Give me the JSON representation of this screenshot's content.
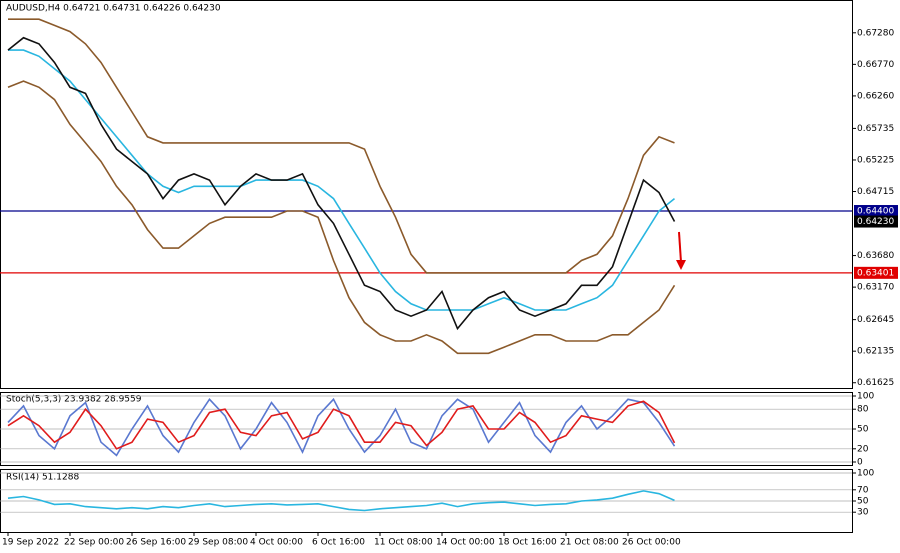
{
  "chart_data": [
    {
      "type": "line",
      "title": "AUDUSD,H4  0.64721 0.64731 0.64226 0.64230",
      "categories": [
        "19 Sep 2022",
        null,
        null,
        null,
        "22 Sep 00:00",
        null,
        null,
        null,
        "26 Sep 16:00",
        null,
        null,
        null,
        "29 Sep 08:00",
        null,
        null,
        null,
        "4 Oct 00:00",
        null,
        null,
        null,
        "6 Oct 16:00",
        null,
        null,
        null,
        "11 Oct 08:00",
        null,
        null,
        null,
        "14 Oct 00:00",
        null,
        null,
        null,
        "18 Oct 16:00",
        null,
        null,
        null,
        "21 Oct 08:00",
        null,
        null,
        null,
        "26 Oct 00:00",
        null,
        null,
        null
      ],
      "series": [
        {
          "color": "#8b5a2b",
          "values": [
            0.675,
            0.675,
            0.675,
            0.674,
            0.673,
            0.671,
            0.668,
            0.664,
            0.66,
            0.656,
            0.655,
            0.655,
            0.655,
            0.655,
            0.655,
            0.655,
            0.655,
            0.655,
            0.655,
            0.655,
            0.655,
            0.655,
            0.655,
            0.654,
            0.648,
            0.643,
            0.637,
            0.634,
            0.634,
            0.634,
            0.634,
            0.634,
            0.634,
            0.634,
            0.634,
            0.634,
            0.634,
            0.636,
            0.637,
            0.64,
            0.646,
            0.653,
            0.656,
            0.655
          ]
        },
        {
          "color": "#8b5a2b",
          "values": [
            0.664,
            0.665,
            0.664,
            0.662,
            0.658,
            0.655,
            0.652,
            0.648,
            0.645,
            0.641,
            0.638,
            0.638,
            0.64,
            0.642,
            0.643,
            0.643,
            0.643,
            0.643,
            0.644,
            0.644,
            0.643,
            0.636,
            0.63,
            0.626,
            0.624,
            0.623,
            0.623,
            0.624,
            0.623,
            0.621,
            0.621,
            0.621,
            0.622,
            0.623,
            0.624,
            0.624,
            0.623,
            0.623,
            0.623,
            0.624,
            0.624,
            0.626,
            0.628,
            0.632
          ]
        },
        {
          "color": "#29b6e0",
          "values": [
            0.67,
            0.67,
            0.669,
            0.667,
            0.665,
            0.662,
            0.659,
            0.656,
            0.653,
            0.65,
            0.648,
            0.647,
            0.648,
            0.648,
            0.648,
            0.648,
            0.649,
            0.649,
            0.649,
            0.649,
            0.648,
            0.646,
            0.642,
            0.638,
            0.634,
            0.631,
            0.629,
            0.628,
            0.628,
            0.628,
            0.628,
            0.629,
            0.63,
            0.629,
            0.628,
            0.628,
            0.628,
            0.629,
            0.63,
            0.632,
            0.636,
            0.64,
            0.644,
            0.646
          ]
        },
        {
          "color": "#111111",
          "values": [
            0.67,
            0.672,
            0.671,
            0.668,
            0.664,
            0.663,
            0.658,
            0.654,
            0.652,
            0.65,
            0.646,
            0.649,
            0.65,
            0.649,
            0.645,
            0.648,
            0.65,
            0.649,
            0.649,
            0.65,
            0.645,
            0.642,
            0.637,
            0.632,
            0.631,
            0.628,
            0.627,
            0.628,
            0.631,
            0.625,
            0.628,
            0.63,
            0.631,
            0.628,
            0.627,
            0.628,
            0.629,
            0.632,
            0.632,
            0.635,
            0.642,
            0.649,
            0.647,
            0.6423
          ]
        }
      ],
      "ylim": [
        0.6154,
        0.6781
      ],
      "yticks": [
        {
          "value": 0.6728,
          "label": "0.67280"
        },
        {
          "value": 0.6677,
          "label": "0.66770"
        },
        {
          "value": 0.6626,
          "label": "0.66260"
        },
        {
          "value": 0.65735,
          "label": "0.65735"
        },
        {
          "value": 0.65225,
          "label": "0.65225"
        },
        {
          "value": 0.64715,
          "label": "0.64715"
        },
        {
          "value": 0.6368,
          "label": "0.63680"
        },
        {
          "value": 0.6317,
          "label": "0.63170"
        },
        {
          "value": 0.62645,
          "label": "0.62645"
        },
        {
          "value": 0.62135,
          "label": "0.62135"
        },
        {
          "value": 0.61625,
          "label": "0.61625"
        }
      ],
      "levels": [
        {
          "value": 0.644,
          "label": "0.64400",
          "color": "#00008b"
        },
        {
          "value": 0.63401,
          "label": "0.63401",
          "color": "#e00000"
        },
        {
          "value": 0.6423,
          "label": "0.64230",
          "color": "#000000"
        }
      ],
      "grid": false
    },
    {
      "type": "line",
      "title": "Stoch(5,3,3) 23.9382 28.9559",
      "series": [
        {
          "color": "#5a78d0",
          "values": [
            60,
            85,
            40,
            20,
            70,
            90,
            30,
            10,
            50,
            85,
            40,
            15,
            60,
            95,
            70,
            20,
            50,
            90,
            60,
            15,
            70,
            95,
            50,
            15,
            40,
            80,
            30,
            20,
            70,
            95,
            80,
            30,
            60,
            90,
            40,
            15,
            60,
            85,
            50,
            70,
            95,
            90,
            60,
            24
          ]
        },
        {
          "color": "#e01c1c",
          "values": [
            55,
            70,
            55,
            30,
            45,
            80,
            55,
            20,
            30,
            65,
            60,
            30,
            40,
            75,
            80,
            45,
            40,
            70,
            75,
            35,
            45,
            80,
            70,
            30,
            30,
            60,
            55,
            25,
            45,
            80,
            85,
            50,
            50,
            75,
            60,
            30,
            40,
            70,
            65,
            60,
            85,
            92,
            75,
            29
          ]
        }
      ],
      "ylim": [
        0,
        100
      ],
      "yticks": [
        100,
        80,
        50,
        20,
        0
      ],
      "grid": true
    },
    {
      "type": "line",
      "title": "RSI(14) 51.1288",
      "series": [
        {
          "color": "#29b6e0",
          "values": [
            55,
            58,
            52,
            44,
            45,
            40,
            38,
            36,
            38,
            36,
            40,
            38,
            42,
            45,
            40,
            42,
            44,
            45,
            43,
            44,
            45,
            40,
            35,
            33,
            36,
            38,
            40,
            42,
            46,
            40,
            45,
            47,
            48,
            45,
            42,
            44,
            45,
            50,
            52,
            55,
            62,
            68,
            63,
            51
          ]
        }
      ],
      "ylim": [
        0,
        100
      ],
      "yticks": [
        100,
        70,
        50,
        30
      ],
      "grid": true
    }
  ]
}
